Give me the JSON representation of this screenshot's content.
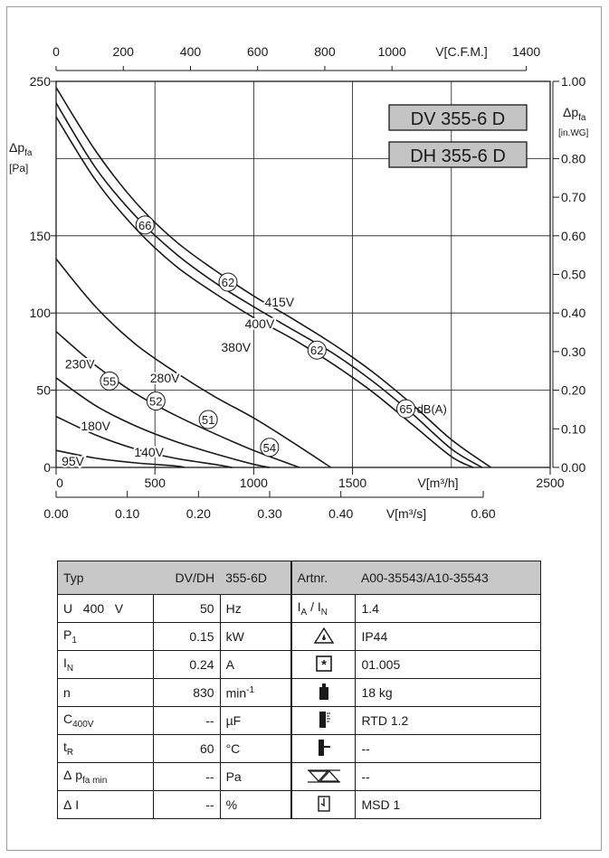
{
  "chart_data": {
    "type": "line",
    "xaxis_bottom": {
      "label": "V[m³/h]",
      "range": [
        0,
        2500
      ],
      "ticks": [
        "0",
        "500",
        "1000",
        "1500",
        "2500"
      ]
    },
    "xaxis_bottom2": {
      "label": "V[m³/s]",
      "range": [
        0,
        0.694
      ],
      "ticks": [
        "0.00",
        "0.10",
        "0.20",
        "0.30",
        "0.40",
        "0.60"
      ]
    },
    "xaxis_top": {
      "label": "V[C.F.M.]",
      "range": [
        0,
        1471
      ],
      "ticks": [
        "0",
        "200",
        "400",
        "600",
        "800",
        "1000",
        "1400"
      ]
    },
    "yaxis_left": {
      "label": "Δp",
      "sub": "fa",
      "unit": "[Pa]",
      "range": [
        0,
        250
      ],
      "ticks": [
        "0",
        "50",
        "100",
        "150",
        "250"
      ]
    },
    "yaxis_right": {
      "label": "Δp",
      "sub": "fa",
      "unit": "[in.WG]",
      "range": [
        0,
        1.0
      ],
      "ticks": [
        "0.00",
        "0.10",
        "0.20",
        "0.30",
        "0.40",
        "0.50",
        "0.60",
        "0.70",
        "0.80",
        "1.00"
      ]
    },
    "grid": true,
    "models": [
      "DV 355-6 D",
      "DH 355-6 D"
    ],
    "series": [
      {
        "name": "415V",
        "x": [
          0,
          200,
          400,
          600,
          800,
          1000,
          1200,
          1400,
          1600,
          1800,
          2000,
          2200
        ],
        "y": [
          246,
          205,
          172,
          147,
          128,
          111,
          96,
          80,
          62,
          41,
          18,
          0
        ]
      },
      {
        "name": "400V",
        "x": [
          0,
          200,
          400,
          600,
          800,
          1000,
          1200,
          1400,
          1600,
          1800,
          2000,
          2155
        ],
        "y": [
          236,
          194,
          163,
          139,
          120,
          104,
          89,
          74,
          56,
          35,
          12,
          0
        ]
      },
      {
        "name": "380V",
        "x": [
          0,
          200,
          400,
          600,
          800,
          1000,
          1200,
          1400,
          1600,
          1800,
          2000,
          2110
        ],
        "y": [
          227,
          186,
          155,
          131,
          113,
          97,
          83,
          67,
          49,
          28,
          7,
          0
        ]
      },
      {
        "name": "280V",
        "x": [
          0,
          200,
          400,
          600,
          800,
          1000,
          1200,
          1390
        ],
        "y": [
          135,
          104,
          80,
          62,
          46,
          32,
          16,
          0
        ]
      },
      {
        "name": "230V",
        "x": [
          0,
          200,
          400,
          600,
          800,
          1000,
          1230
        ],
        "y": [
          88,
          66,
          48,
          34,
          22,
          11,
          0
        ]
      },
      {
        "name": "180V",
        "x": [
          0,
          200,
          400,
          600,
          800,
          1000,
          1080
        ],
        "y": [
          58,
          40,
          27,
          17,
          9,
          2,
          0
        ]
      },
      {
        "name": "140V",
        "x": [
          0,
          200,
          400,
          600,
          800,
          890
        ],
        "y": [
          33,
          21,
          12,
          6,
          2,
          0
        ]
      },
      {
        "name": "95V",
        "x": [
          0,
          200,
          400,
          600,
          650
        ],
        "y": [
          11,
          6,
          3,
          1,
          0
        ]
      }
    ],
    "line_labels": [
      {
        "text": "415V",
        "x": 1130,
        "y": 107
      },
      {
        "text": "400V",
        "x": 1030,
        "y": 93
      },
      {
        "text": "380V",
        "x": 910,
        "y": 78
      },
      {
        "text": "280V",
        "x": 550,
        "y": 58
      },
      {
        "text": "230V",
        "x": 120,
        "y": 67
      },
      {
        "text": "180V",
        "x": 200,
        "y": 27
      },
      {
        "text": "140V",
        "x": 470,
        "y": 10
      },
      {
        "text": "95V",
        "x": 85,
        "y": 4
      }
    ],
    "sound_markers": [
      {
        "value": "66",
        "x": 450,
        "y": 157
      },
      {
        "value": "62",
        "x": 870,
        "y": 120
      },
      {
        "value": "62",
        "x": 1320,
        "y": 76
      },
      {
        "value": "65",
        "x": 1770,
        "y": 38
      },
      {
        "value": "55",
        "x": 270,
        "y": 56
      },
      {
        "value": "52",
        "x": 505,
        "y": 43
      },
      {
        "value": "51",
        "x": 770,
        "y": 31
      },
      {
        "value": "54",
        "x": 1080,
        "y": 13
      }
    ],
    "sound_unit": "dB(A)"
  },
  "table": {
    "header": {
      "typ": "Typ",
      "model_label": "DV/DH",
      "model": "355-6D",
      "artnr_label": "Artnr.",
      "artnr": "A00-35543/A10-35543"
    },
    "rows": [
      {
        "sym": "U   400   V",
        "value": "50",
        "unit": "Hz",
        "right_sym": "I_A / I_N",
        "right_value": "1.4"
      },
      {
        "sym": "P1",
        "value": "0.15",
        "unit": "kW",
        "right_sym": "protection-icon",
        "right_value": "IP44"
      },
      {
        "sym": "IN",
        "value": "0.24",
        "unit": "A",
        "right_sym": "insulation-icon",
        "right_value": "01.005"
      },
      {
        "sym": "n",
        "value": "830",
        "unit": "min-1",
        "right_sym": "weight-icon",
        "right_value": "18 kg"
      },
      {
        "sym": "C400V",
        "value": "--",
        "unit": "µF",
        "right_sym": "thermostat-icon",
        "right_value": "RTD 1.2"
      },
      {
        "sym": "tR",
        "value": "60",
        "unit": "°C",
        "right_sym": "thermocontact-icon",
        "right_value": "--"
      },
      {
        "sym": "Δpfa min",
        "value": "--",
        "unit": "Pa",
        "right_sym": "speed-controller-icon",
        "right_value": "--"
      },
      {
        "sym": "ΔI",
        "value": "--",
        "unit": "%",
        "right_sym": "motor-switch-icon",
        "right_value": "MSD 1"
      }
    ]
  }
}
